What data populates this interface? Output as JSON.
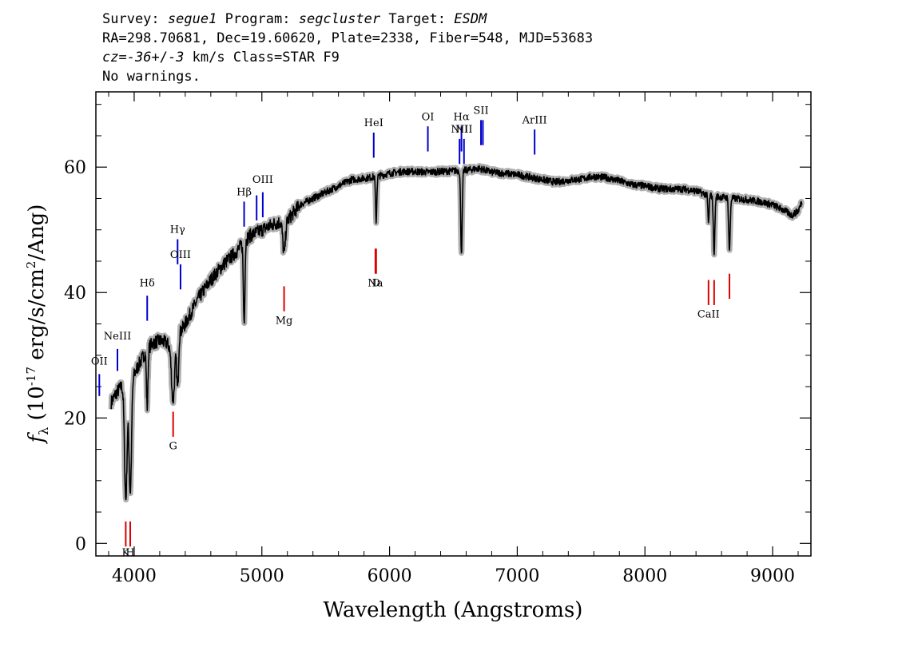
{
  "header": {
    "survey_label": "Survey:",
    "survey": "segue1",
    "program_label": "Program:",
    "program": "segcluster",
    "target_label": "Target:",
    "target": "ESDM",
    "line2": "RA=298.70681, Dec=19.60620, Plate=2338, Fiber=548, MJD=53683",
    "cz_label": "cz=",
    "cz_value": "-36",
    "cz_pm": "+/-",
    "cz_err": "3",
    "cz_rest": " km/s Class=STAR F9",
    "line4": "No warnings."
  },
  "chart_data": {
    "type": "line",
    "xlabel": "Wavelength (Angstroms)",
    "ylabel": "f_λ (10^-17 erg/s/cm^2/Ang)",
    "xlim": [
      3700,
      9300
    ],
    "ylim": [
      -2,
      72
    ],
    "xticks": [
      4000,
      5000,
      6000,
      7000,
      8000,
      9000
    ],
    "yticks": [
      0,
      20,
      40,
      60
    ],
    "colors": {
      "flux": "#000000",
      "error": "#b0b0b0",
      "emission": "#0000cc",
      "absorption": "#dd0000"
    },
    "continuum": [
      [
        3820,
        22.5
      ],
      [
        3860,
        24
      ],
      [
        3900,
        25
      ],
      [
        3960,
        25.5
      ],
      [
        4000,
        27
      ],
      [
        4050,
        29
      ],
      [
        4100,
        31
      ],
      [
        4150,
        32
      ],
      [
        4200,
        32.3
      ],
      [
        4250,
        32
      ],
      [
        4300,
        31
      ],
      [
        4340,
        33
      ],
      [
        4400,
        35
      ],
      [
        4450,
        37
      ],
      [
        4500,
        39
      ],
      [
        4600,
        42
      ],
      [
        4700,
        44.5
      ],
      [
        4800,
        46.5
      ],
      [
        4900,
        49
      ],
      [
        5000,
        50
      ],
      [
        5100,
        51
      ],
      [
        5200,
        51.5
      ],
      [
        5300,
        54
      ],
      [
        5400,
        55
      ],
      [
        5500,
        56
      ],
      [
        5600,
        57
      ],
      [
        5700,
        58
      ],
      [
        5800,
        58.2
      ],
      [
        5900,
        58.5
      ],
      [
        6000,
        59
      ],
      [
        6100,
        59.3
      ],
      [
        6200,
        59.3
      ],
      [
        6300,
        59.2
      ],
      [
        6400,
        59.3
      ],
      [
        6500,
        59.4
      ],
      [
        6600,
        59.5
      ],
      [
        6700,
        59.8
      ],
      [
        6800,
        59.2
      ],
      [
        6900,
        59
      ],
      [
        7000,
        58.8
      ],
      [
        7100,
        58.4
      ],
      [
        7200,
        58
      ],
      [
        7300,
        57.6
      ],
      [
        7400,
        57.9
      ],
      [
        7500,
        58.1
      ],
      [
        7600,
        58.5
      ],
      [
        7700,
        58.3
      ],
      [
        7800,
        57.8
      ],
      [
        7900,
        57.2
      ],
      [
        8000,
        57
      ],
      [
        8100,
        56.6
      ],
      [
        8200,
        56.5
      ],
      [
        8300,
        56.5
      ],
      [
        8400,
        56.2
      ],
      [
        8500,
        55.5
      ],
      [
        8600,
        55.2
      ],
      [
        8700,
        55
      ],
      [
        8800,
        54.8
      ],
      [
        8900,
        54.5
      ],
      [
        9000,
        54
      ],
      [
        9100,
        53
      ],
      [
        9150,
        52.3
      ],
      [
        9200,
        53
      ],
      [
        9230,
        54.5
      ]
    ],
    "absorption_features": [
      {
        "wave": 3934,
        "depth": 0.72,
        "width": 10
      },
      {
        "wave": 3969,
        "depth": 0.68,
        "width": 10
      },
      {
        "wave": 4102,
        "depth": 0.3,
        "width": 6
      },
      {
        "wave": 4305,
        "depth": 0.27,
        "width": 12
      },
      {
        "wave": 4340,
        "depth": 0.25,
        "width": 7
      },
      {
        "wave": 4861,
        "depth": 0.26,
        "width": 6
      },
      {
        "wave": 5174,
        "depth": 0.1,
        "width": 10
      },
      {
        "wave": 5895,
        "depth": 0.12,
        "width": 5
      },
      {
        "wave": 6563,
        "depth": 0.22,
        "width": 6
      },
      {
        "wave": 8498,
        "depth": 0.08,
        "width": 5
      },
      {
        "wave": 8542,
        "depth": 0.16,
        "width": 6
      },
      {
        "wave": 8662,
        "depth": 0.15,
        "width": 6
      }
    ],
    "emission_lines": [
      {
        "label": "OII",
        "wave": 3727,
        "ytop": 27,
        "ybot": 23.5,
        "label_y": 28.5
      },
      {
        "label": "NeIII",
        "wave": 3869,
        "ytop": 31,
        "ybot": 27.5,
        "label_y": 32.5
      },
      {
        "label": "Hδ",
        "wave": 4102,
        "ytop": 39.5,
        "ybot": 35.5,
        "label_y": 41
      },
      {
        "label": "Hγ",
        "wave": 4340,
        "ytop": 48.5,
        "ybot": 44.5,
        "label_y": 49.5
      },
      {
        "label": "OIII",
        "wave": 4363,
        "ytop": 44.5,
        "ybot": 40.5,
        "label_y": 45.5
      },
      {
        "label": "Hβ",
        "wave": 4861,
        "ytop": 54.5,
        "ybot": 50.5,
        "label_y": 55.5
      },
      {
        "label": "OIII",
        "wave": 4959,
        "ytop": 55.5,
        "ybot": 51.5,
        "label_y": null
      },
      {
        "label": "OIII",
        "wave": 5007,
        "ytop": 56,
        "ybot": 52,
        "label_y": 57.5
      },
      {
        "label": "HeI",
        "wave": 5876,
        "ytop": 65.5,
        "ybot": 61.5,
        "label_y": 66.5
      },
      {
        "label": "OI",
        "wave": 6300,
        "ytop": 66.5,
        "ybot": 62.5,
        "label_y": 67.5
      },
      {
        "label": "NII",
        "wave": 6548,
        "ytop": 64.5,
        "ybot": 60.5,
        "label_y": 65.5
      },
      {
        "label": "Hα",
        "wave": 6563,
        "ytop": 66.5,
        "ybot": 62.5,
        "label_y": 67.5
      },
      {
        "label": "NII",
        "wave": 6583,
        "ytop": 64.5,
        "ybot": 60.5,
        "label_y": 65.5
      },
      {
        "label": "SII",
        "wave": 6716,
        "ytop": 67.5,
        "ybot": 63.5,
        "label_y": 68.5
      },
      {
        "label": "SII",
        "wave": 6731,
        "ytop": 67.5,
        "ybot": 63.5,
        "label_y": null
      },
      {
        "label": "ArIII",
        "wave": 7136,
        "ytop": 66,
        "ybot": 62,
        "label_y": 67
      }
    ],
    "absorption_lines": [
      {
        "label": "K",
        "wave": 3934,
        "ytop": 3.5,
        "ybot": -0.5,
        "label_y": -2
      },
      {
        "label": "H",
        "wave": 3969,
        "ytop": 3.5,
        "ybot": -0.5,
        "label_y": -2
      },
      {
        "label": "G",
        "wave": 4305,
        "ytop": 21,
        "ybot": 17,
        "label_y": 15
      },
      {
        "label": "Mg",
        "wave": 5174,
        "ytop": 41,
        "ybot": 37,
        "label_y": 35
      },
      {
        "label": "Na",
        "wave": 5889,
        "ytop": 47,
        "ybot": 43,
        "label_y": 41
      },
      {
        "label": "D",
        "wave": 5895,
        "ytop": 47,
        "ybot": 43,
        "label_y": 41
      },
      {
        "label": "CaII",
        "wave": 8498,
        "ytop": 42,
        "ybot": 38,
        "label_y": 36
      },
      {
        "label": "CaII",
        "wave": 8542,
        "ytop": 42,
        "ybot": 38,
        "label_y": null
      },
      {
        "label": "CaII",
        "wave": 8662,
        "ytop": 43,
        "ybot": 39,
        "label_y": null
      }
    ]
  }
}
